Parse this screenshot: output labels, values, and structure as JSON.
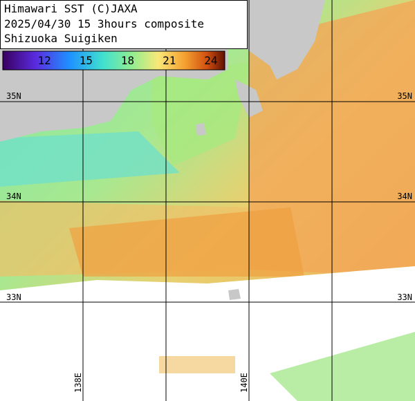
{
  "header": {
    "lines": [
      "Himawari SST (C)JAXA",
      "2025/04/30 15 3hours composite",
      "Shizuoka Suigiken"
    ]
  },
  "colorbar": {
    "range": [
      9,
      25
    ],
    "ticks": [
      12,
      15,
      18,
      21,
      24
    ]
  },
  "grid": {
    "lat_labels": [
      "35N",
      "34N",
      "33N"
    ],
    "lon_labels": [
      "138E",
      "140E"
    ]
  }
}
